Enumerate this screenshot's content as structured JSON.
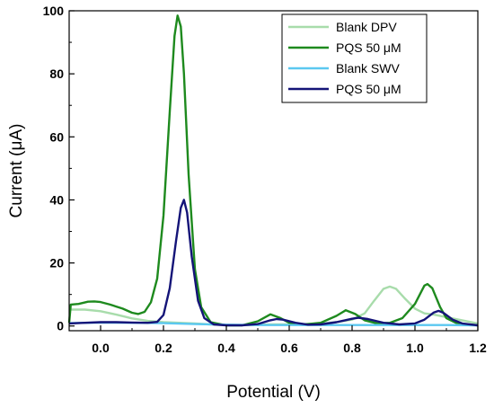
{
  "chart_data": {
    "type": "line",
    "title": "",
    "xlabel": "Potential (V)",
    "ylabel": "Current (μA)",
    "xlim": [
      -0.1,
      1.2
    ],
    "ylim": [
      -1.5,
      100
    ],
    "xticks": [
      0.0,
      0.2,
      0.4,
      0.6,
      0.8,
      1.0,
      1.2
    ],
    "xtick_labels": [
      "0.0",
      "0.2",
      "0.4",
      "0.6",
      "0.8",
      "1.0",
      "1.2"
    ],
    "yticks": [
      0,
      20,
      40,
      60,
      80,
      100
    ],
    "ytick_labels": [
      "0",
      "20",
      "40",
      "60",
      "80",
      "100"
    ],
    "grid": false,
    "legend_position": "top-right",
    "series": [
      {
        "name": "Blank DPV",
        "color": "#a8dcab",
        "points": [
          [
            -0.1,
            5.2
          ],
          [
            -0.05,
            5.2
          ],
          [
            0.0,
            4.7
          ],
          [
            0.05,
            3.6
          ],
          [
            0.1,
            2.4
          ],
          [
            0.15,
            1.6
          ],
          [
            0.2,
            1.2
          ],
          [
            0.25,
            1.0
          ],
          [
            0.3,
            0.8
          ],
          [
            0.35,
            0.5
          ],
          [
            0.4,
            0.3
          ],
          [
            0.45,
            0.3
          ],
          [
            0.5,
            0.4
          ],
          [
            0.55,
            0.5
          ],
          [
            0.6,
            0.5
          ],
          [
            0.65,
            0.6
          ],
          [
            0.7,
            0.8
          ],
          [
            0.75,
            1.2
          ],
          [
            0.8,
            2.0
          ],
          [
            0.84,
            4.0
          ],
          [
            0.87,
            8.0
          ],
          [
            0.9,
            11.8
          ],
          [
            0.92,
            12.5
          ],
          [
            0.94,
            11.8
          ],
          [
            0.97,
            8.5
          ],
          [
            1.0,
            5.5
          ],
          [
            1.03,
            4.0
          ],
          [
            1.06,
            3.6
          ],
          [
            1.1,
            2.8
          ],
          [
            1.15,
            1.8
          ],
          [
            1.2,
            0.8
          ]
        ]
      },
      {
        "name": "PQS 50 μM",
        "color": "#1e8a1e",
        "points": [
          [
            -0.1,
            1.0
          ],
          [
            -0.095,
            6.8
          ],
          [
            -0.07,
            7.0
          ],
          [
            -0.04,
            7.7
          ],
          [
            -0.02,
            7.8
          ],
          [
            0.0,
            7.6
          ],
          [
            0.03,
            6.8
          ],
          [
            0.07,
            5.5
          ],
          [
            0.1,
            4.2
          ],
          [
            0.12,
            3.8
          ],
          [
            0.14,
            4.5
          ],
          [
            0.16,
            7.5
          ],
          [
            0.18,
            15.0
          ],
          [
            0.2,
            35.0
          ],
          [
            0.22,
            68.0
          ],
          [
            0.235,
            92.0
          ],
          [
            0.245,
            98.5
          ],
          [
            0.255,
            95.0
          ],
          [
            0.265,
            80.0
          ],
          [
            0.28,
            48.0
          ],
          [
            0.3,
            18.0
          ],
          [
            0.32,
            6.0
          ],
          [
            0.35,
            1.2
          ],
          [
            0.4,
            0.2
          ],
          [
            0.45,
            0.2
          ],
          [
            0.5,
            1.5
          ],
          [
            0.54,
            3.7
          ],
          [
            0.57,
            2.6
          ],
          [
            0.6,
            1.0
          ],
          [
            0.65,
            0.5
          ],
          [
            0.7,
            1.0
          ],
          [
            0.75,
            3.2
          ],
          [
            0.78,
            5.0
          ],
          [
            0.81,
            3.8
          ],
          [
            0.84,
            1.8
          ],
          [
            0.88,
            0.8
          ],
          [
            0.92,
            1.0
          ],
          [
            0.96,
            2.5
          ],
          [
            1.0,
            7.0
          ],
          [
            1.03,
            12.8
          ],
          [
            1.04,
            13.3
          ],
          [
            1.055,
            12.0
          ],
          [
            1.08,
            6.0
          ],
          [
            1.1,
            2.5
          ],
          [
            1.13,
            1.0
          ],
          [
            1.16,
            0.5
          ],
          [
            1.2,
            0.2
          ]
        ]
      },
      {
        "name": "Blank SWV",
        "color": "#5bc8f0",
        "points": [
          [
            -0.1,
            0.9
          ],
          [
            0.0,
            1.1
          ],
          [
            0.1,
            1.0
          ],
          [
            0.2,
            0.9
          ],
          [
            0.3,
            0.6
          ],
          [
            0.4,
            0.4
          ],
          [
            0.5,
            0.3
          ],
          [
            0.6,
            0.3
          ],
          [
            0.7,
            0.3
          ],
          [
            0.8,
            0.3
          ],
          [
            0.9,
            0.3
          ],
          [
            1.0,
            0.3
          ],
          [
            1.1,
            0.3
          ],
          [
            1.2,
            0.2
          ]
        ]
      },
      {
        "name": "PQS 50 μM",
        "color": "#141478",
        "points": [
          [
            -0.1,
            0.8
          ],
          [
            -0.05,
            1.0
          ],
          [
            0.0,
            1.2
          ],
          [
            0.05,
            1.2
          ],
          [
            0.1,
            1.1
          ],
          [
            0.15,
            1.0
          ],
          [
            0.18,
            1.3
          ],
          [
            0.2,
            3.5
          ],
          [
            0.22,
            12.0
          ],
          [
            0.24,
            27.0
          ],
          [
            0.255,
            37.5
          ],
          [
            0.265,
            40.0
          ],
          [
            0.275,
            36.0
          ],
          [
            0.29,
            22.0
          ],
          [
            0.31,
            8.0
          ],
          [
            0.33,
            2.5
          ],
          [
            0.36,
            0.5
          ],
          [
            0.4,
            0.2
          ],
          [
            0.45,
            0.2
          ],
          [
            0.5,
            0.6
          ],
          [
            0.54,
            1.8
          ],
          [
            0.56,
            2.2
          ],
          [
            0.58,
            2.0
          ],
          [
            0.62,
            1.0
          ],
          [
            0.66,
            0.4
          ],
          [
            0.7,
            0.5
          ],
          [
            0.75,
            1.2
          ],
          [
            0.8,
            2.3
          ],
          [
            0.82,
            2.6
          ],
          [
            0.85,
            2.2
          ],
          [
            0.9,
            1.0
          ],
          [
            0.95,
            0.5
          ],
          [
            1.0,
            0.8
          ],
          [
            1.03,
            2.0
          ],
          [
            1.06,
            4.3
          ],
          [
            1.075,
            4.8
          ],
          [
            1.09,
            4.2
          ],
          [
            1.12,
            2.0
          ],
          [
            1.15,
            0.8
          ],
          [
            1.2,
            0.2
          ]
        ]
      }
    ]
  }
}
